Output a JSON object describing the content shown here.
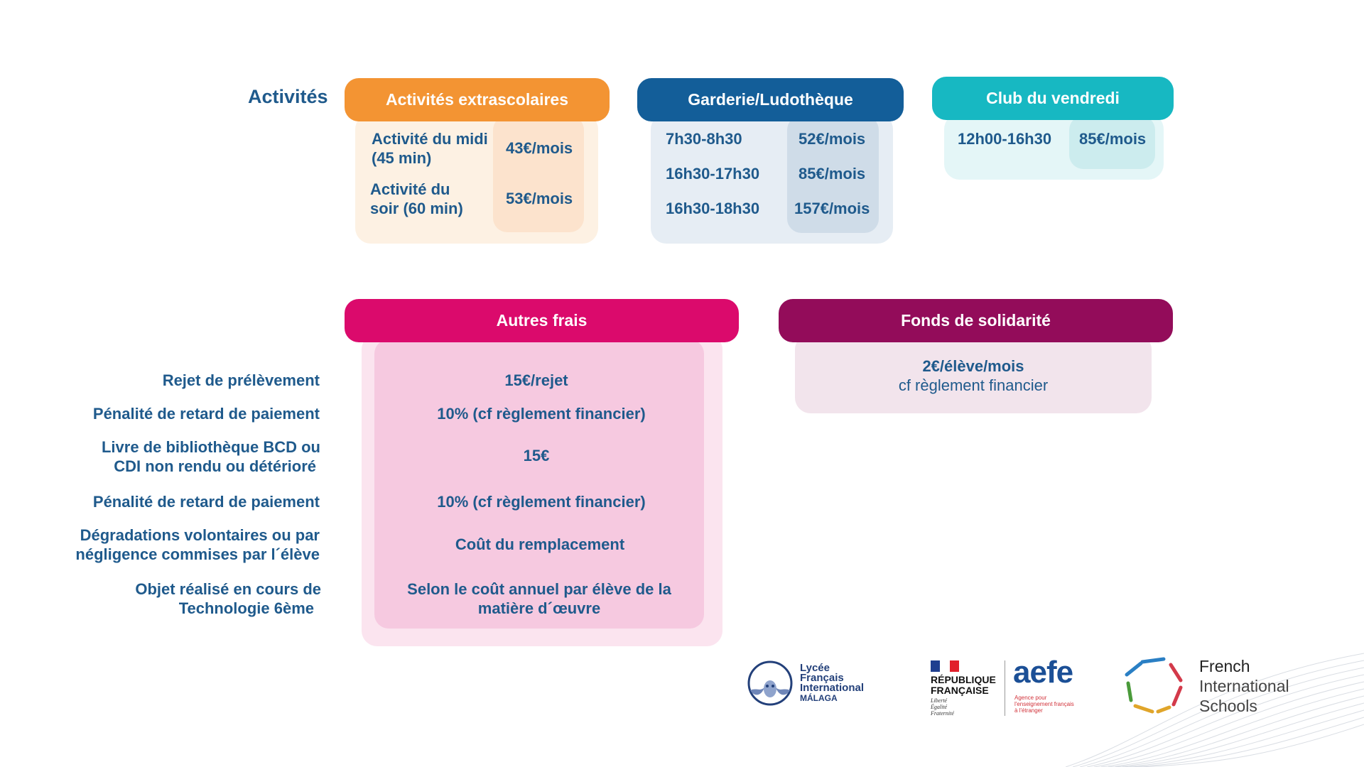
{
  "activities_label": "Activités",
  "extrascolaires": {
    "title": "Activités extrascolaires",
    "rows": [
      {
        "name_line1": "Activité du midi",
        "name_line2": "(45 min)",
        "price": "43€/mois"
      },
      {
        "name_line1": "Activité du",
        "name_line2": "soir (60 min)",
        "price": "53€/mois"
      }
    ]
  },
  "garderie": {
    "title": "Garderie/Ludothèque",
    "rows": [
      {
        "time": "7h30-8h30",
        "price": "52€/mois"
      },
      {
        "time": "16h30-17h30",
        "price": "85€/mois"
      },
      {
        "time": "16h30-18h30",
        "price": "157€/mois"
      }
    ]
  },
  "club": {
    "title": "Club du vendredi",
    "rows": [
      {
        "time": "12h00-16h30",
        "price": "85€/mois"
      }
    ]
  },
  "autres_frais": {
    "title": "Autres frais",
    "rows": [
      {
        "label_line1": "Rejet de prélèvement",
        "label_line2": "",
        "value_line1": "15€/rejet",
        "value_line2": ""
      },
      {
        "label_line1": "Pénalité de retard de paiement",
        "label_line2": "",
        "value_line1": "10% (cf règlement financier)",
        "value_line2": ""
      },
      {
        "label_line1": "Livre de bibliothèque BCD ou",
        "label_line2": "CDI non rendu ou détérioré",
        "value_line1": "15€",
        "value_line2": ""
      },
      {
        "label_line1": "Pénalité de retard de paiement",
        "label_line2": "",
        "value_line1": "10% (cf règlement financier)",
        "value_line2": ""
      },
      {
        "label_line1": "Dégradations volontaires ou par",
        "label_line2": "négligence commises par l´élève",
        "value_line1": "Coût du remplacement",
        "value_line2": ""
      },
      {
        "label_line1": "Objet réalisé en cours de",
        "label_line2": "Technologie 6ème",
        "value_line1": "Selon le coût annuel par élève de la",
        "value_line2": "matière d´œuvre"
      }
    ]
  },
  "solidarite": {
    "title": "Fonds de solidarité",
    "line1": "2€/élève/mois",
    "line2": "cf règlement financier"
  },
  "logos": {
    "lycee": {
      "line1": "Lycée",
      "line2": "Français",
      "line3": "International",
      "line4": "MÁLAGA"
    },
    "republique": {
      "line1": "RÉPUBLIQUE",
      "line2": "FRANÇAISE",
      "motto1": "Liberté",
      "motto2": "Égalité",
      "motto3": "Fraternité"
    },
    "aefe": {
      "name": "aefe",
      "sub1": "Agence pour",
      "sub2": "l'enseignement français",
      "sub3": "à l'étranger"
    },
    "fis": {
      "line1": "French",
      "line2": "International",
      "line3": "Schools"
    }
  },
  "colors": {
    "extrascolaires": "#f39433",
    "garderie": "#135e99",
    "club": "#17b8c2",
    "autres_frais": "#db0a6c",
    "solidarite": "#930c5a",
    "text": "#1f5a8c"
  }
}
